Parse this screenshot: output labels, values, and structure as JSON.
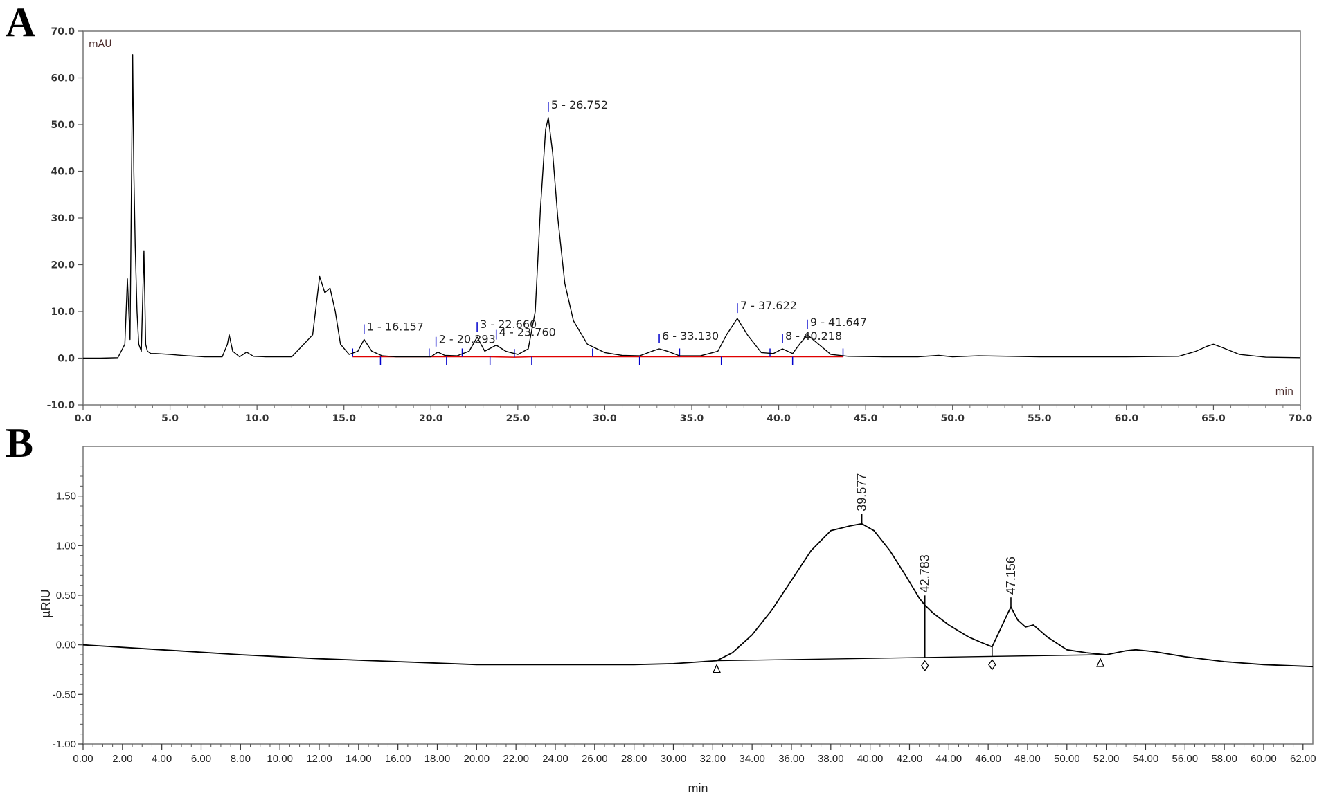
{
  "chart_data": [
    {
      "type": "line",
      "panel_label": "A",
      "ylabel": "mAU",
      "xlabel": "min",
      "xlim": [
        0,
        70
      ],
      "ylim": [
        -10,
        70
      ],
      "xticks": [
        "0.0",
        "5.0",
        "10.0",
        "15.0",
        "20.0",
        "25.0",
        "30.0",
        "35.0",
        "40.0",
        "45.0",
        "50.0",
        "55.0",
        "60.0",
        "65.0",
        "70.0"
      ],
      "yticks": [
        "70.0",
        "60.0",
        "50.0",
        "40.0",
        "30.0",
        "20.0",
        "10.0",
        "0.0",
        "-10.0"
      ],
      "grid": false,
      "signal": {
        "x": [
          0,
          1,
          2,
          2.4,
          2.55,
          2.7,
          2.85,
          2.92,
          3.0,
          3.1,
          3.2,
          3.35,
          3.5,
          3.6,
          3.7,
          3.9,
          4.2,
          5,
          6,
          7,
          8,
          8.3,
          8.4,
          8.6,
          9,
          9.4,
          9.8,
          10.5,
          12,
          13.2,
          13.6,
          13.9,
          14.2,
          14.5,
          14.8,
          15.3,
          15.8,
          16.157,
          16.6,
          17.2,
          18,
          19,
          20,
          20.4,
          20.8,
          21.5,
          22.2,
          22.66,
          23.1,
          23.76,
          24.3,
          25,
          25.6,
          26.0,
          26.3,
          26.6,
          26.752,
          27.0,
          27.3,
          27.7,
          28.2,
          29,
          30,
          31,
          32,
          32.8,
          33.13,
          33.6,
          34.3,
          35.5,
          36.5,
          37,
          37.622,
          38.2,
          39,
          39.7,
          40.218,
          40.8,
          41.2,
          41.647,
          42.3,
          43,
          44,
          46,
          48,
          49.2,
          50,
          51.5,
          55,
          60,
          63,
          64,
          64.6,
          65,
          65.5,
          66.5,
          68,
          70
        ],
        "y": [
          0,
          0,
          0.1,
          3,
          17,
          4,
          65,
          40,
          24,
          10,
          3,
          1.5,
          23,
          3,
          1.5,
          1,
          1,
          0.8,
          0.5,
          0.3,
          0.3,
          3,
          5,
          1.5,
          0.3,
          1.3,
          0.4,
          0.3,
          0.3,
          5,
          17.5,
          14,
          15,
          10,
          3,
          0.8,
          1.5,
          4,
          1.5,
          0.5,
          0.3,
          0.3,
          0.3,
          1.3,
          0.6,
          0.5,
          1.5,
          4.5,
          1.5,
          2.8,
          1.5,
          0.8,
          2,
          10,
          32,
          49,
          51.5,
          44,
          30,
          16,
          8,
          3,
          1.2,
          0.6,
          0.5,
          1.6,
          2,
          1.5,
          0.5,
          0.5,
          1.5,
          5,
          8.5,
          5,
          1.2,
          1,
          2,
          1,
          3,
          5,
          3,
          0.8,
          0.4,
          0.3,
          0.3,
          0.6,
          0.3,
          0.5,
          0.3,
          0.3,
          0.4,
          1.5,
          2.5,
          3,
          2.3,
          0.8,
          0.2,
          0.1
        ]
      },
      "peak_labels": [
        {
          "text": "1 - 16.157",
          "x": 16.157,
          "y": 4
        },
        {
          "text": "2 - 20.293",
          "x": 20.293,
          "y": 1.3
        },
        {
          "text": "3 - 22.660",
          "x": 22.66,
          "y": 4.5
        },
        {
          "text": "4 - 23.760",
          "x": 23.76,
          "y": 2.8
        },
        {
          "text": "5 - 26.752",
          "x": 26.752,
          "y": 51.5
        },
        {
          "text": "6 - 33.130",
          "x": 33.13,
          "y": 2
        },
        {
          "text": "7 - 37.622",
          "x": 37.622,
          "y": 8.5
        },
        {
          "text": "8 - 40.218",
          "x": 40.218,
          "y": 2
        },
        {
          "text": "9 - 41.647",
          "x": 41.647,
          "y": 5
        }
      ],
      "integration_baseline": [
        [
          15.5,
          0.3
        ],
        [
          17.1,
          0.3
        ],
        [
          19.9,
          0.3
        ],
        [
          20.9,
          0.3
        ],
        [
          21.8,
          0.3
        ],
        [
          23.4,
          0.3
        ],
        [
          24.8,
          0.2
        ],
        [
          25.8,
          0.3
        ],
        [
          29.3,
          0.3
        ],
        [
          32.0,
          0.3
        ],
        [
          34.3,
          0.3
        ],
        [
          36.7,
          0.3
        ],
        [
          39.5,
          0.3
        ],
        [
          40.8,
          0.3
        ],
        [
          43.7,
          0.3
        ]
      ],
      "colors": {
        "signal": "#000000",
        "baseline": "#e00000",
        "markers": "#0000cc"
      }
    },
    {
      "type": "line",
      "panel_label": "B",
      "ylabel": "µRIU",
      "xlabel": "min",
      "xlim": [
        0,
        62.5
      ],
      "ylim": [
        -1.0,
        2.0
      ],
      "xticks": [
        "0.00",
        "2.00",
        "4.00",
        "6.00",
        "8.00",
        "10.00",
        "12.00",
        "14.00",
        "16.00",
        "18.00",
        "20.00",
        "22.00",
        "24.00",
        "26.00",
        "28.00",
        "30.00",
        "32.00",
        "34.00",
        "36.00",
        "38.00",
        "40.00",
        "42.00",
        "44.00",
        "46.00",
        "48.00",
        "50.00",
        "52.00",
        "54.00",
        "56.00",
        "58.00",
        "60.00",
        "62.00"
      ],
      "yticks": [
        "1.50",
        "1.00",
        "0.50",
        "0.00",
        "-0.50",
        "-1.00"
      ],
      "grid": false,
      "signal": {
        "x": [
          0,
          4,
          8,
          12,
          16,
          20,
          24,
          28,
          30,
          31.5,
          32.2,
          33,
          34,
          35,
          36,
          37,
          38,
          39,
          39.577,
          40.2,
          41,
          41.8,
          42.5,
          42.783,
          43.2,
          44,
          45,
          45.7,
          46.2,
          46.6,
          47.0,
          47.156,
          47.5,
          47.9,
          48.3,
          49,
          50,
          51,
          52,
          53,
          53.5,
          54.5,
          56,
          58,
          60,
          62.5
        ],
        "y": [
          0,
          -0.05,
          -0.1,
          -0.14,
          -0.17,
          -0.2,
          -0.2,
          -0.2,
          -0.19,
          -0.17,
          -0.16,
          -0.08,
          0.1,
          0.35,
          0.65,
          0.95,
          1.15,
          1.2,
          1.22,
          1.15,
          0.95,
          0.7,
          0.47,
          0.4,
          0.32,
          0.2,
          0.08,
          0.02,
          -0.02,
          0.15,
          0.32,
          0.38,
          0.25,
          0.18,
          0.2,
          0.08,
          -0.05,
          -0.08,
          -0.1,
          -0.06,
          -0.05,
          -0.07,
          -0.12,
          -0.17,
          -0.2,
          -0.22
        ]
      },
      "baseline": {
        "x": [
          32.2,
          51.7
        ],
        "y": [
          -0.16,
          -0.1
        ]
      },
      "peak_labels": [
        {
          "text": "39.577",
          "x": 39.577,
          "y": 1.22
        },
        {
          "text": "42.783",
          "x": 42.783,
          "y": 0.4
        },
        {
          "text": "47.156",
          "x": 47.156,
          "y": 0.38
        }
      ],
      "drop_lines": [
        42.783,
        46.2
      ],
      "markers": [
        {
          "shape": "triangle",
          "x": 32.2
        },
        {
          "shape": "diamond",
          "x": 42.783
        },
        {
          "shape": "diamond",
          "x": 46.2
        },
        {
          "shape": "triangle",
          "x": 51.7
        }
      ],
      "colors": {
        "signal": "#000000",
        "baseline": "#000000"
      }
    }
  ]
}
